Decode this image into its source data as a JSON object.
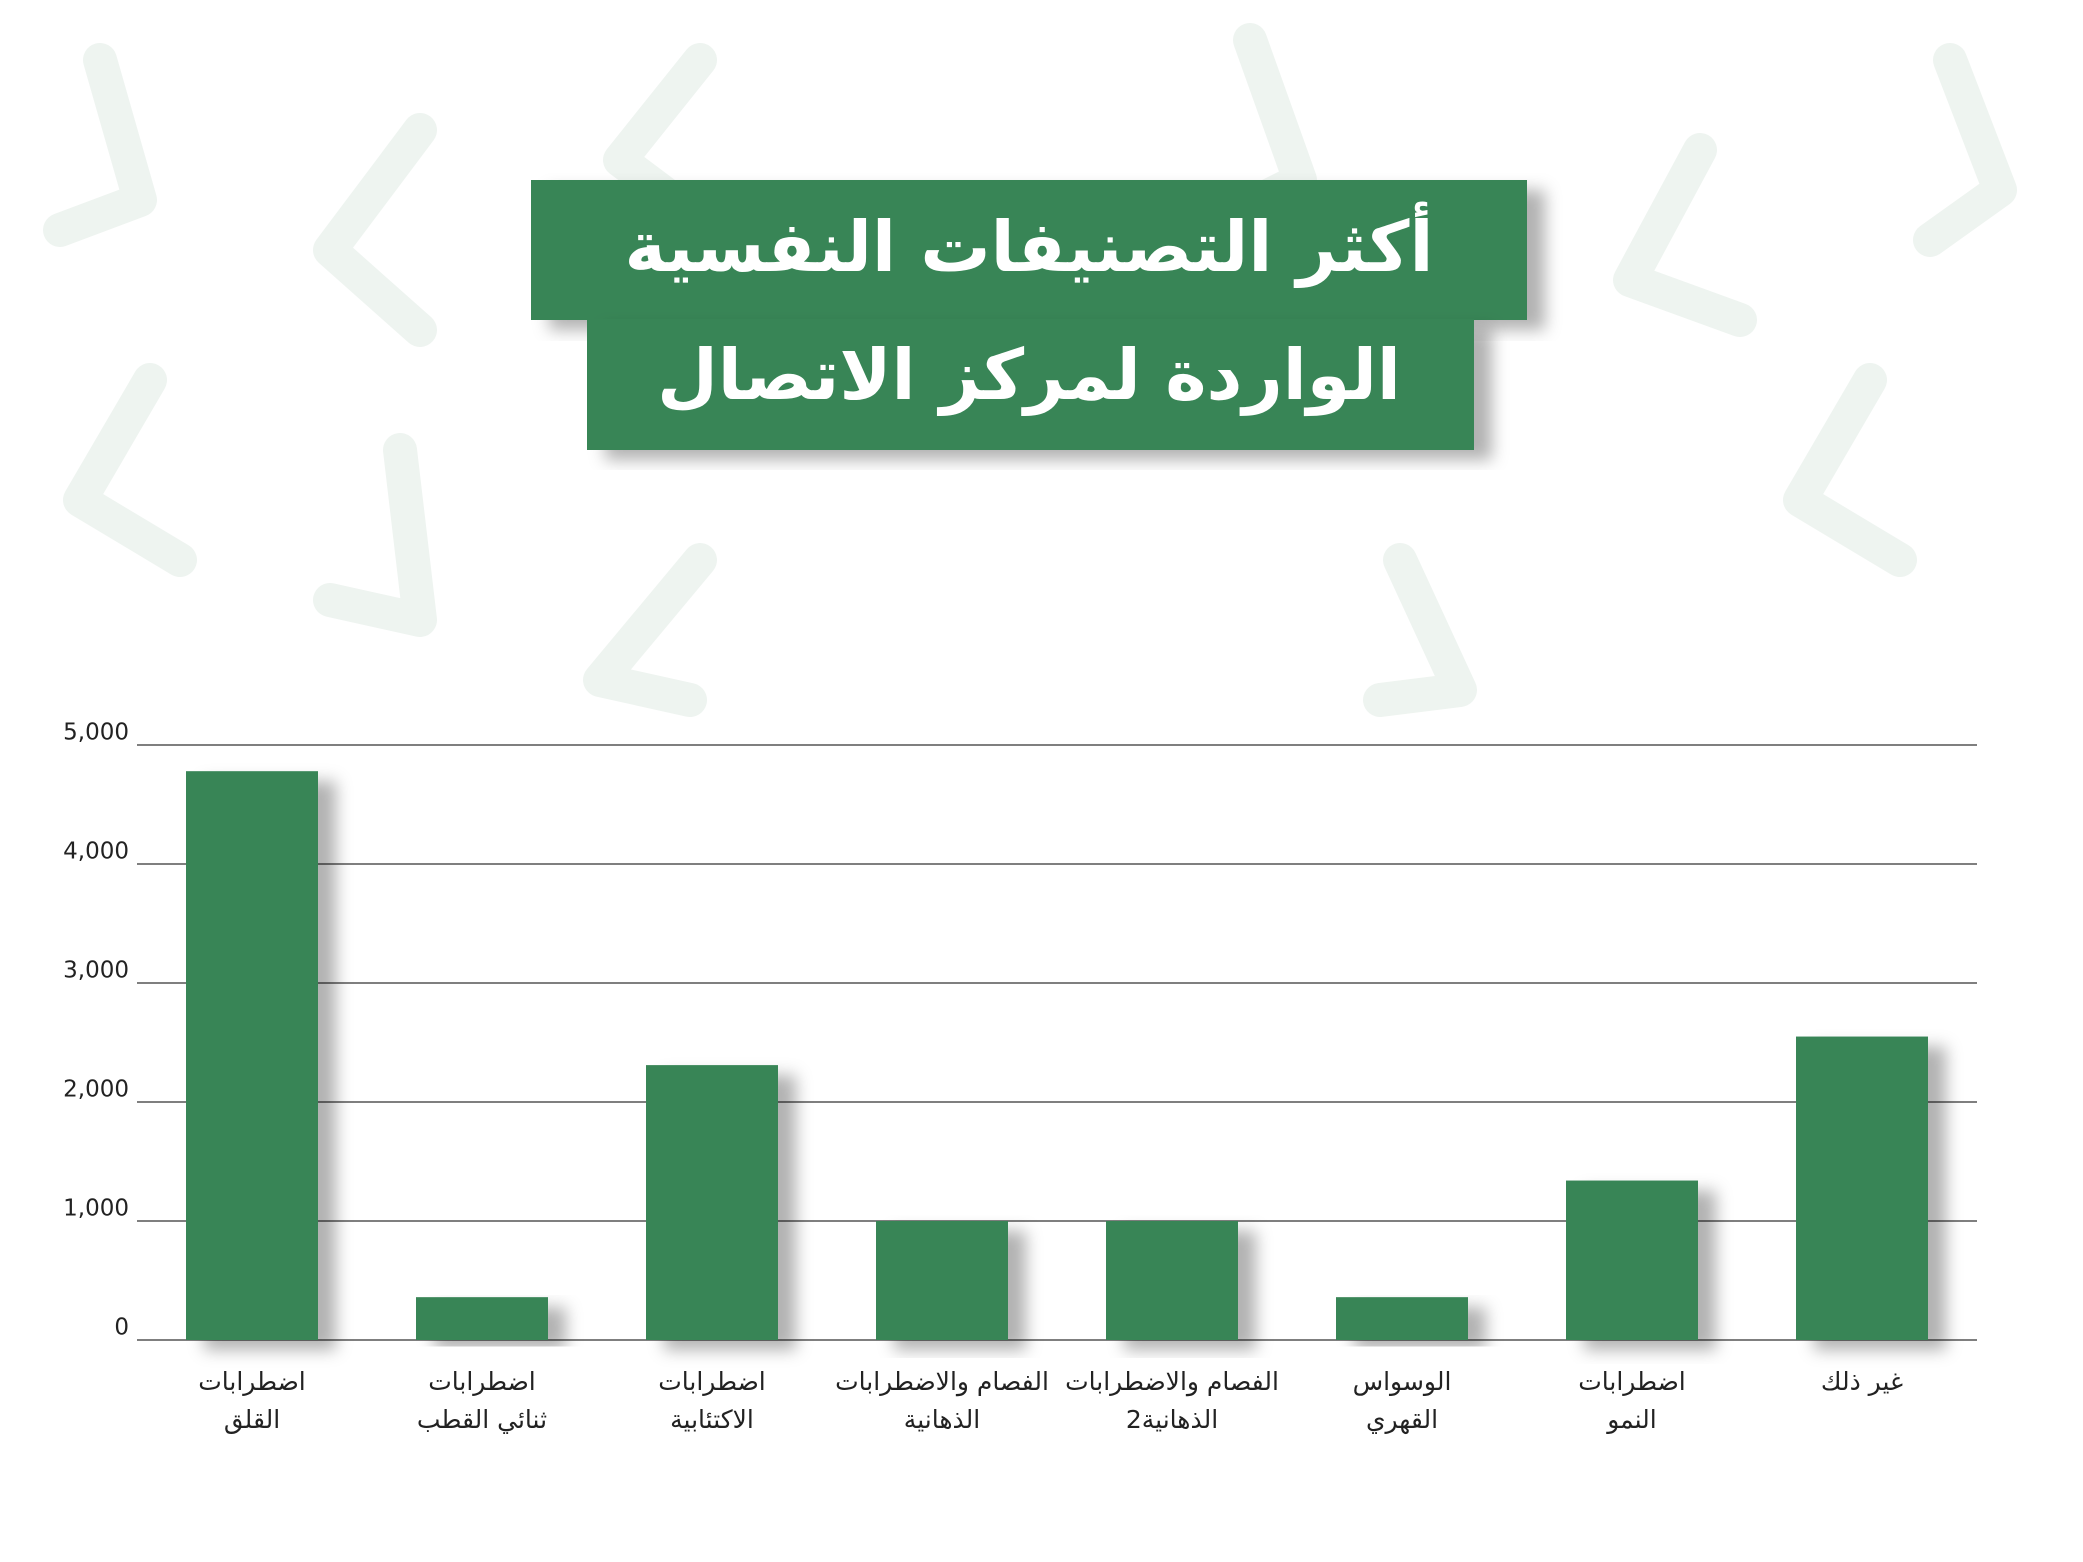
{
  "chart_data": {
    "type": "bar",
    "title": [
      "أكثر التصنيفات النفسية",
      "الواردة لمركز الاتصال"
    ],
    "categories": [
      [
        "اضطرابات",
        "القلق"
      ],
      [
        "اضطرابات",
        "ثنائي القطب"
      ],
      [
        "اضطرابات",
        "الاكتئابية"
      ],
      [
        "الفصام والاضطرابات",
        "الذهانية"
      ],
      [
        "الفصام والاضطرابات",
        "الذهانية2"
      ],
      [
        "الوسواس",
        "القهري"
      ],
      [
        "اضطرابات",
        "النمو"
      ],
      [
        "غير ذلك"
      ]
    ],
    "values": [
      4780,
      360,
      2310,
      1000,
      1000,
      360,
      1340,
      2550
    ],
    "color": "#388557",
    "ylim": [
      0,
      5000
    ],
    "yticks": [
      0,
      {
        "value": 1000,
        "label": "1,000"
      },
      {
        "value": 2000,
        "label": "2,000"
      },
      {
        "value": 3000,
        "label": "3,000"
      },
      {
        "value": 4000,
        "label": "4,000"
      },
      {
        "value": 5000,
        "label": "5,000"
      }
    ],
    "grid": true
  }
}
